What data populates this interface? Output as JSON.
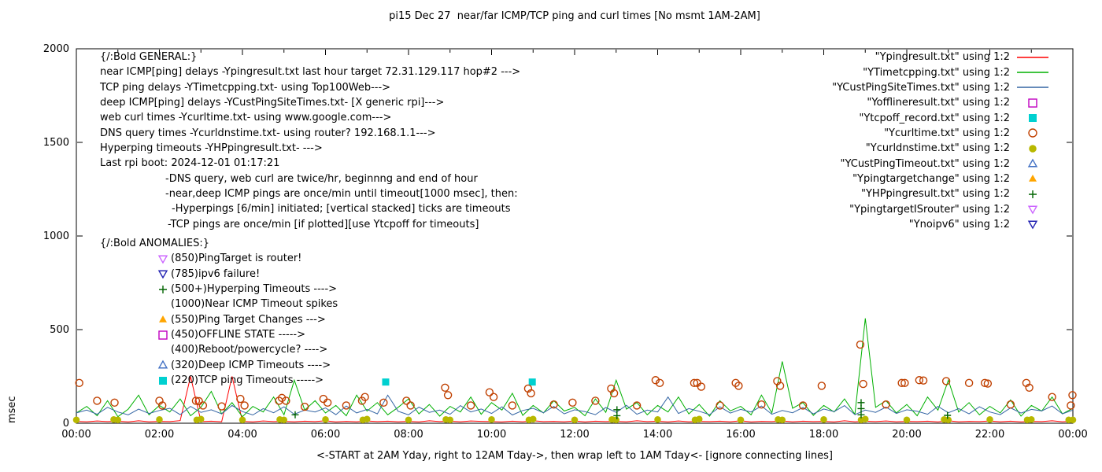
{
  "plot_text": {
    "general": [
      {
        "indent": 0,
        "text": "{/:Bold GENERAL:}"
      },
      {
        "indent": 0,
        "text": "near ICMP[ping] delays -Ypingresult.txt last hour target 72.31.129.117 hop#2 --->"
      },
      {
        "indent": 0,
        "text": "TCP ping delays -YTimetcpping.txt- using Top100Web--->"
      },
      {
        "indent": 0,
        "text": "deep ICMP[ping] delays -YCustPingSiteTimes.txt- [X generic rpi]--->"
      },
      {
        "indent": 0,
        "text": "web curl times -Ycurltime.txt- using www.google.com--->"
      },
      {
        "indent": 0,
        "text": "DNS query times -Ycurldnstime.txt- using router? 192.168.1.1--->"
      },
      {
        "indent": 0,
        "text": "Hyperping timeouts -YHPpingresult.txt- --->"
      },
      {
        "indent": 0,
        "text": "Last rpi boot: 2024-12-01 01:17:21"
      },
      {
        "indent": 1,
        "text": "-DNS query, web curl are twice/hr, beginnng and end of hour"
      },
      {
        "indent": 1,
        "text": "-near,deep ICMP pings are once/min until timeout[1000 msec], then:"
      },
      {
        "indent": 2,
        "text": "-Hyperpings [6/min] initiated; [vertical stacked] ticks are timeouts"
      },
      {
        "indent": 3,
        "text": "-TCP pings are once/min [if plotted][use Ytcpoff for timeouts]"
      }
    ],
    "anomalies_header": "{/:Bold ANOMALIES:}",
    "anomalies": [
      {
        "marker": "triangle-down-open",
        "color": "#cc66ff",
        "text": "(850)PingTarget is router!"
      },
      {
        "marker": "triangle-down-open",
        "color": "#2222b2",
        "text": "(785)ipv6 failure!"
      },
      {
        "marker": "plus",
        "color": "#006400",
        "text": "(500+)Hyperping Timeouts ---->"
      },
      {
        "marker": null,
        "color": null,
        "text": "(1000)Near ICMP Timeout spikes"
      },
      {
        "marker": "triangle-up-filled",
        "color": "#ffa500",
        "text": "(550)Ping Target Changes --->"
      },
      {
        "marker": "square-open",
        "color": "#c000c0",
        "text": "(450)OFFLINE STATE ----->"
      },
      {
        "marker": null,
        "color": null,
        "text": "(400)Reboot/powercycle? ---->"
      },
      {
        "marker": "triangle-up-open",
        "color": "#4472c4",
        "text": "(320)Deep ICMP Timeouts ---->"
      },
      {
        "marker": "square-filled",
        "color": "#00d0d0",
        "text": "(220)TCP ping Timeouts ----->"
      }
    ]
  },
  "chart_data": {
    "type": "line",
    "title": "pi15 Dec 27  near/far ICMP/TCP ping and curl times [No msmt 1AM-2AM]",
    "xlabel": "<-START at 2AM Yday, right to 12AM Tday->, then wrap left to 1AM Tday<- [ignore connecting lines]",
    "ylabel": "msec",
    "xlim": [
      0,
      24
    ],
    "ylim": [
      0,
      2000
    ],
    "grid": false,
    "legend_position": "top-right",
    "y_ticks": [
      0,
      500,
      1000,
      1500,
      2000
    ],
    "x_ticks": [
      {
        "pos": 0,
        "label": "00:00"
      },
      {
        "pos": 2,
        "label": "02:00"
      },
      {
        "pos": 4,
        "label": "04:00"
      },
      {
        "pos": 6,
        "label": "06:00"
      },
      {
        "pos": 8,
        "label": "08:00"
      },
      {
        "pos": 10,
        "label": "10:00"
      },
      {
        "pos": 12,
        "label": "12:00"
      },
      {
        "pos": 14,
        "label": "14:00"
      },
      {
        "pos": 16,
        "label": "16:00"
      },
      {
        "pos": 18,
        "label": "18:00"
      },
      {
        "pos": 20,
        "label": "20:00"
      },
      {
        "pos": 22,
        "label": "22:00"
      },
      {
        "pos": 24,
        "label": "00:00"
      }
    ],
    "x_minor_ticks": [
      1,
      3,
      5,
      7,
      9,
      11,
      13,
      15,
      17,
      19,
      21,
      23
    ],
    "series": [
      {
        "name": "Ypingresult.txt",
        "legend_label": "\"Ypingresult.txt\" using 1:2",
        "kind": "line",
        "color": "#ff0000",
        "x0": 0,
        "dx": 0.25,
        "values": [
          10,
          8,
          12,
          9,
          11,
          7,
          13,
          8,
          10,
          9,
          14,
          250,
          9,
          11,
          8,
          250,
          10,
          7,
          12,
          9,
          10,
          8,
          11,
          9,
          13,
          7,
          10,
          8,
          12,
          9,
          11,
          8,
          10,
          7,
          13,
          9,
          11,
          8,
          12,
          10,
          9,
          7,
          11,
          8,
          13,
          9,
          10,
          8,
          12,
          7,
          11,
          9,
          10,
          8,
          13,
          9,
          11,
          7,
          12,
          8,
          10,
          9,
          11,
          8,
          13,
          7,
          10,
          9,
          12,
          8,
          11,
          9,
          10,
          7,
          13,
          8,
          11,
          9,
          12,
          8,
          10,
          9,
          11,
          7,
          13,
          8,
          10,
          9,
          12,
          8,
          11,
          7,
          10,
          9,
          13,
          8,
          11
        ]
      },
      {
        "name": "YTimetcpping.txt",
        "legend_label": "\"YTimetcpping.txt\" using 1:2",
        "kind": "line",
        "color": "#00b000",
        "x0": 0,
        "dx": 0.25,
        "values": [
          55,
          90,
          40,
          120,
          35,
          75,
          150,
          45,
          95,
          60,
          130,
          40,
          85,
          170,
          50,
          110,
          35,
          90,
          60,
          140,
          45,
          230,
          70,
          120,
          55,
          95,
          40,
          150,
          65,
          110,
          45,
          85,
          130,
          50,
          100,
          38,
          90,
          60,
          140,
          48,
          110,
          70,
          160,
          42,
          95,
          55,
          120,
          65,
          85,
          40,
          130,
          58,
          230,
          75,
          110,
          45,
          95,
          60,
          140,
          50,
          100,
          38,
          120,
          66,
          90,
          45,
          150,
          55,
          330,
          80,
          110,
          42,
          95,
          60,
          130,
          48,
          560,
          85,
          120,
          55,
          100,
          40,
          140,
          70,
          230,
          60,
          110,
          45,
          90,
          55,
          125,
          38,
          95,
          65,
          140,
          50,
          80
        ]
      },
      {
        "name": "YCustPingSiteTimes.txt",
        "legend_label": "\"YCustPingSiteTimes.txt\" using 1:2",
        "kind": "line",
        "color": "#3465a4",
        "x0": 0,
        "dx": 0.25,
        "values": [
          55,
          70,
          48,
          85,
          60,
          45,
          75,
          52,
          68,
          80,
          46,
          90,
          58,
          72,
          50,
          95,
          62,
          44,
          78,
          56,
          88,
          48,
          70,
          60,
          82,
          46,
          92,
          55,
          74,
          50,
          150,
          64,
          45,
          86,
          58,
          70,
          48,
          94,
          60,
          76,
          52,
          88,
          44,
          68,
          80,
          56,
          90,
          50,
          72,
          62,
          46,
          84,
          58,
          96,
          48,
          70,
          60,
          140,
          52,
          78,
          64,
          46,
          88,
          54,
          74,
          60,
          92,
          48,
          68,
          56,
          84,
          50,
          76,
          62,
          94,
          46,
          70,
          58,
          86,
          52,
          72,
          64,
          48,
          90,
          56,
          78,
          50,
          88,
          60,
          46,
          82,
          54,
          74,
          66,
          92,
          50,
          70
        ]
      },
      {
        "name": "Yofflineresult.txt",
        "legend_label": "\"Yofflineresult.txt\" using 1:2",
        "kind": "scatter",
        "marker": "square-open",
        "color": "#c000c0",
        "points": []
      },
      {
        "name": "Ytcpoff_record.txt",
        "legend_label": "\"Ytcpoff_record.txt\" using 1:2",
        "kind": "scatter",
        "marker": "square-filled",
        "color": "#00d0d0",
        "points": [
          [
            7.45,
            220
          ],
          [
            10.98,
            220
          ]
        ]
      },
      {
        "name": "Ycurltime.txt",
        "legend_label": "\"Ycurltime.txt\" using 1:2",
        "kind": "scatter",
        "marker": "circle-open",
        "color": "#c04000",
        "points": [
          [
            0.07,
            215
          ],
          [
            0.5,
            120
          ],
          [
            0.92,
            110
          ],
          [
            2.0,
            120
          ],
          [
            2.07,
            95
          ],
          [
            2.88,
            120
          ],
          [
            2.95,
            118
          ],
          [
            3.05,
            95
          ],
          [
            3.5,
            90
          ],
          [
            3.95,
            130
          ],
          [
            4.05,
            95
          ],
          [
            4.88,
            120
          ],
          [
            4.95,
            135
          ],
          [
            5.05,
            120
          ],
          [
            5.5,
            88
          ],
          [
            5.95,
            130
          ],
          [
            6.05,
            110
          ],
          [
            6.5,
            95
          ],
          [
            6.88,
            120
          ],
          [
            6.95,
            140
          ],
          [
            7.4,
            110
          ],
          [
            7.95,
            120
          ],
          [
            8.05,
            95
          ],
          [
            8.88,
            190
          ],
          [
            8.95,
            150
          ],
          [
            9.5,
            95
          ],
          [
            9.95,
            165
          ],
          [
            10.05,
            140
          ],
          [
            10.5,
            95
          ],
          [
            10.88,
            185
          ],
          [
            10.95,
            160
          ],
          [
            11.5,
            100
          ],
          [
            11.95,
            110
          ],
          [
            12.5,
            120
          ],
          [
            12.88,
            185
          ],
          [
            12.95,
            160
          ],
          [
            13.5,
            95
          ],
          [
            13.95,
            230
          ],
          [
            14.05,
            215
          ],
          [
            14.88,
            215
          ],
          [
            14.95,
            215
          ],
          [
            15.05,
            195
          ],
          [
            15.5,
            95
          ],
          [
            15.88,
            215
          ],
          [
            15.95,
            200
          ],
          [
            16.5,
            100
          ],
          [
            16.88,
            225
          ],
          [
            16.95,
            200
          ],
          [
            17.5,
            95
          ],
          [
            17.95,
            200
          ],
          [
            18.88,
            420
          ],
          [
            18.95,
            210
          ],
          [
            19.5,
            100
          ],
          [
            19.88,
            215
          ],
          [
            19.95,
            215
          ],
          [
            20.3,
            230
          ],
          [
            20.4,
            228
          ],
          [
            20.95,
            225
          ],
          [
            21.5,
            215
          ],
          [
            21.88,
            215
          ],
          [
            21.95,
            212
          ],
          [
            22.5,
            100
          ],
          [
            22.88,
            215
          ],
          [
            22.95,
            190
          ],
          [
            23.5,
            140
          ],
          [
            23.95,
            95
          ],
          [
            23.99,
            150
          ]
        ]
      },
      {
        "name": "Ycurldnstime.txt",
        "legend_label": "\"Ycurldnstime.txt\" using 1:2",
        "kind": "scatter",
        "marker": "circle-filled",
        "color": "#b8b800",
        "points": [
          [
            0,
            18
          ],
          [
            0.9,
            20
          ],
          [
            1,
            18
          ],
          [
            2,
            20
          ],
          [
            2.9,
            18
          ],
          [
            3,
            22
          ],
          [
            4,
            18
          ],
          [
            4.9,
            20
          ],
          [
            5,
            18
          ],
          [
            6,
            20
          ],
          [
            6.9,
            18
          ],
          [
            7,
            22
          ],
          [
            8,
            18
          ],
          [
            8.9,
            20
          ],
          [
            9,
            18
          ],
          [
            10,
            20
          ],
          [
            10.9,
            18
          ],
          [
            11,
            22
          ],
          [
            12,
            18
          ],
          [
            12.9,
            20
          ],
          [
            13,
            18
          ],
          [
            14,
            20
          ],
          [
            14.9,
            18
          ],
          [
            15,
            22
          ],
          [
            16,
            18
          ],
          [
            16.9,
            20
          ],
          [
            17,
            18
          ],
          [
            18,
            20
          ],
          [
            18.9,
            18
          ],
          [
            19,
            22
          ],
          [
            20,
            18
          ],
          [
            20.9,
            20
          ],
          [
            21,
            18
          ],
          [
            22,
            20
          ],
          [
            22.9,
            18
          ],
          [
            23,
            20
          ],
          [
            23.9,
            18
          ],
          [
            24,
            18
          ]
        ]
      },
      {
        "name": "YCustPingTimeout.txt",
        "legend_label": "\"YCustPingTimeout.txt\" using 1:2",
        "kind": "scatter",
        "marker": "triangle-up-open",
        "color": "#4472c4",
        "points": []
      },
      {
        "name": "Ypingtargetchange",
        "legend_label": "\"Ypingtargetchange\" using 1:2",
        "kind": "scatter",
        "marker": "triangle-up-filled",
        "color": "#ffa500",
        "points": []
      },
      {
        "name": "YHPpingresult.txt",
        "legend_label": "\"YHPpingresult.txt\" using 1:2",
        "kind": "scatter",
        "marker": "plus",
        "color": "#006400",
        "points": [
          [
            5.27,
            45
          ],
          [
            13.02,
            40
          ],
          [
            13.02,
            72
          ],
          [
            18.9,
            45
          ],
          [
            18.9,
            78
          ],
          [
            18.9,
            110
          ],
          [
            20.98,
            42
          ]
        ]
      },
      {
        "name": "YpingtargetISrouter",
        "legend_label": "\"YpingtargetISrouter\" using 1:2",
        "kind": "scatter",
        "marker": "triangle-down-open",
        "color": "#cc66ff",
        "points": []
      },
      {
        "name": "Ynoipv6",
        "legend_label": "\"Ynoipv6\" using 1:2",
        "kind": "scatter",
        "marker": "triangle-down-open",
        "color": "#2222b2",
        "points": []
      }
    ]
  }
}
